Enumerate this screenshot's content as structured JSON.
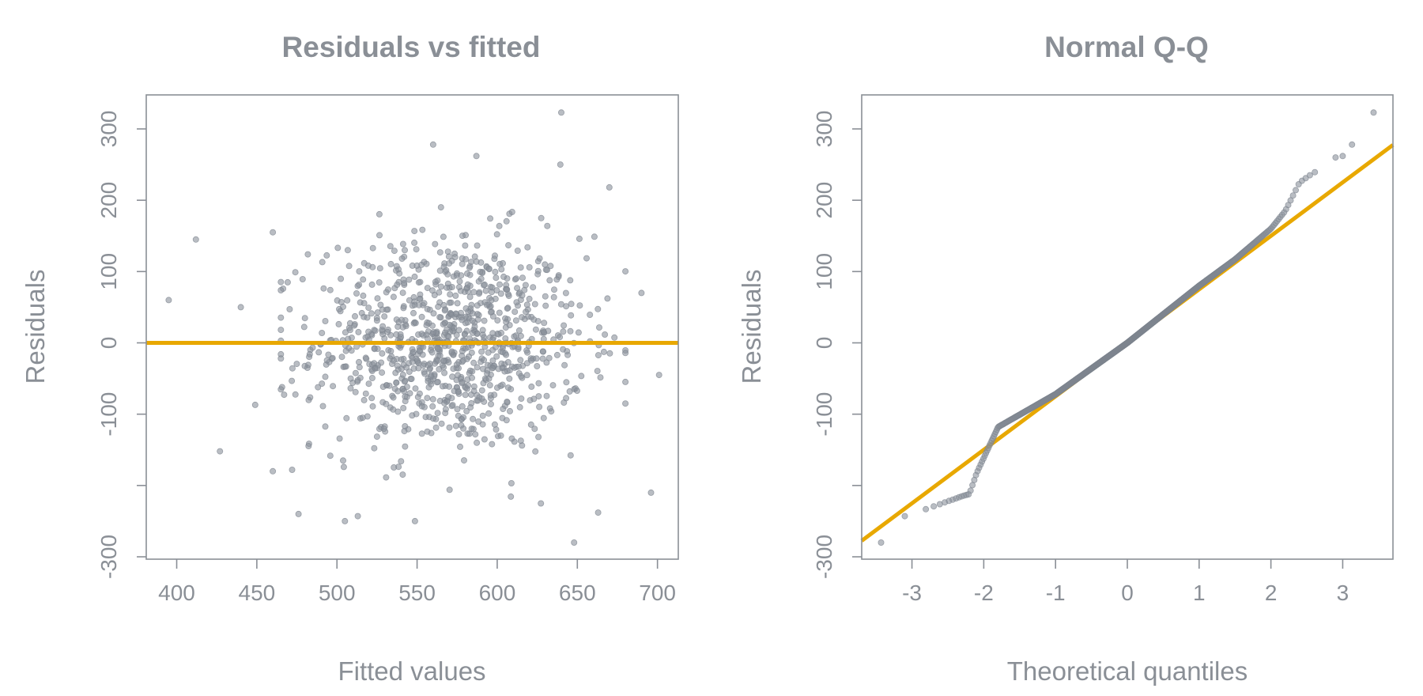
{
  "colors": {
    "text": "#8a8f96",
    "points": "#8a919b",
    "reference_line": "#e8a800"
  },
  "chart_data": [
    {
      "type": "scatter",
      "title": "Residuals vs fitted",
      "xlabel": "Fitted values",
      "ylabel": "Residuals",
      "xlim": [
        381,
        713
      ],
      "ylim": [
        -300,
        300
      ],
      "xticks": [
        400,
        450,
        500,
        550,
        600,
        650,
        700
      ],
      "xtick_labels": [
        "400",
        "450",
        "500",
        "550",
        "600",
        "650",
        "700"
      ],
      "yticks": [
        300,
        200,
        100,
        0,
        -100,
        -200,
        -300
      ],
      "ytick_labels": [
        "300",
        "200",
        "100",
        "0",
        "-100",
        "",
        "-300"
      ],
      "reference_line": {
        "type": "horizontal",
        "y": 0
      },
      "n_points": 1000,
      "highlighted_points": [
        {
          "x": 395,
          "y": 60
        },
        {
          "x": 412,
          "y": 145
        },
        {
          "x": 427,
          "y": -152
        },
        {
          "x": 440,
          "y": 50
        },
        {
          "x": 449,
          "y": -87
        },
        {
          "x": 460,
          "y": -180
        },
        {
          "x": 460,
          "y": 155
        },
        {
          "x": 472,
          "y": -178
        },
        {
          "x": 476,
          "y": -240
        },
        {
          "x": 513,
          "y": -243
        },
        {
          "x": 560,
          "y": 278
        },
        {
          "x": 587,
          "y": 262
        },
        {
          "x": 640,
          "y": 323
        },
        {
          "x": 648,
          "y": -280
        },
        {
          "x": 663,
          "y": -238
        },
        {
          "x": 670,
          "y": 218
        },
        {
          "x": 690,
          "y": 70
        },
        {
          "x": 696,
          "y": -210
        },
        {
          "x": 701,
          "y": -45
        }
      ]
    },
    {
      "type": "scatter",
      "title": "Normal Q-Q",
      "xlabel": "Theoretical quantiles",
      "ylabel": "Residuals",
      "xlim": [
        -3.7,
        3.7
      ],
      "ylim": [
        -300,
        300
      ],
      "xticks": [
        -3,
        -2,
        -1,
        0,
        1,
        2,
        3
      ],
      "xtick_labels": [
        "-3",
        "-2",
        "-1",
        "0",
        "1",
        "2",
        "3"
      ],
      "yticks": [
        300,
        200,
        100,
        0,
        -100,
        -200,
        -300
      ],
      "ytick_labels": [
        "300",
        "200",
        "100",
        "0",
        "-100",
        "",
        "-300"
      ],
      "reference_line": {
        "type": "qq",
        "intercept": 0,
        "slope": 75
      },
      "n_points": 1000,
      "extreme_points": [
        {
          "x": -3.43,
          "y": -280
        },
        {
          "x": -3.1,
          "y": -243
        },
        {
          "x": 2.9,
          "y": 260
        },
        {
          "x": 3.0,
          "y": 262
        },
        {
          "x": 3.13,
          "y": 278
        },
        {
          "x": 3.43,
          "y": 323
        }
      ]
    }
  ]
}
